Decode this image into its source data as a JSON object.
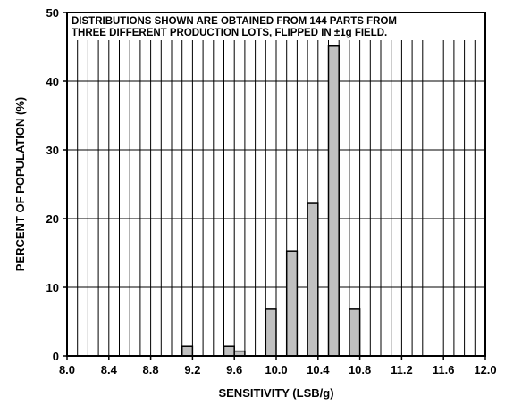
{
  "chart_data": {
    "type": "bar",
    "title": "",
    "xlabel": "SENSITIVITY (LSB/g)",
    "ylabel": "PERCENT OF POPULATION (%)",
    "xlim": [
      8.0,
      12.0
    ],
    "ylim": [
      0,
      50
    ],
    "x_ticks": [
      "8.0",
      "8.4",
      "8.8",
      "9.2",
      "9.6",
      "10.0",
      "10.4",
      "10.8",
      "11.2",
      "11.6",
      "12.0"
    ],
    "y_ticks": [
      "0",
      "10",
      "20",
      "30",
      "40",
      "50"
    ],
    "bin_width": 0.1,
    "bins": [
      {
        "x_start": 9.1,
        "x_end": 9.2,
        "value": 1.4
      },
      {
        "x_start": 9.5,
        "x_end": 9.6,
        "value": 1.4
      },
      {
        "x_start": 9.6,
        "x_end": 9.7,
        "value": 0.7
      },
      {
        "x_start": 9.9,
        "x_end": 10.0,
        "value": 6.9
      },
      {
        "x_start": 10.1,
        "x_end": 10.2,
        "value": 15.3
      },
      {
        "x_start": 10.3,
        "x_end": 10.4,
        "value": 22.2
      },
      {
        "x_start": 10.5,
        "x_end": 10.6,
        "value": 45.1
      },
      {
        "x_start": 10.7,
        "x_end": 10.8,
        "value": 6.9
      }
    ],
    "annotation": [
      "DISTRIBUTIONS SHOWN ARE OBTAINED FROM 144 PARTS FROM",
      "THREE DIFFERENT PRODUCTION LOTS, FLIPPED IN ±1g FIELD."
    ],
    "grid": true,
    "bar_color": "#c0c0c0"
  }
}
